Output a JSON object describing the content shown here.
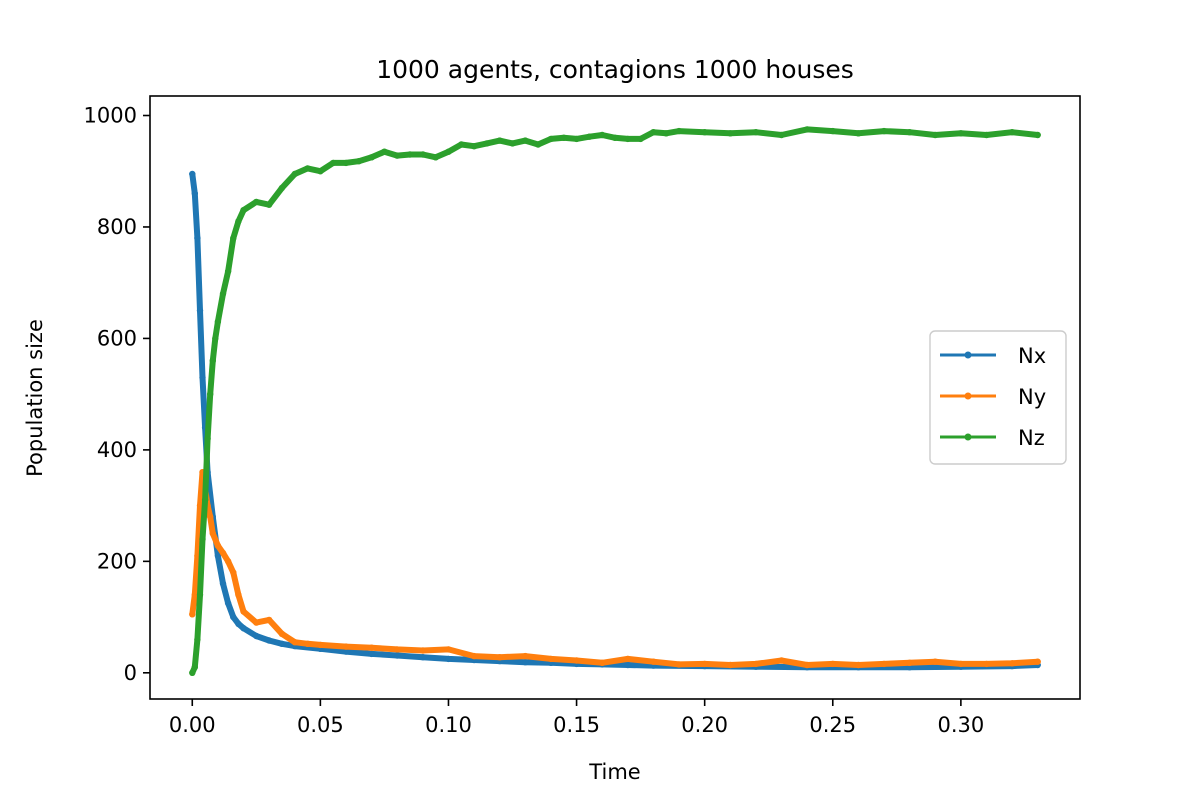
{
  "chart_data": {
    "type": "line",
    "title": "1000 agents, contagions 1000 houses",
    "xlabel": "Time",
    "ylabel": "Population size",
    "xlim": [
      -0.0165,
      0.3465
    ],
    "ylim": [
      -47,
      1035
    ],
    "xticks": [
      "0.00",
      "0.05",
      "0.10",
      "0.15",
      "0.20",
      "0.25",
      "0.30"
    ],
    "yticks": [
      "0",
      "200",
      "400",
      "600",
      "800",
      "1000"
    ],
    "grid": false,
    "legend_position": "center-right",
    "series": [
      {
        "name": "Nx",
        "color": "#1f77b4",
        "points": [
          [
            0.0,
            895
          ],
          [
            0.001,
            860
          ],
          [
            0.002,
            780
          ],
          [
            0.003,
            650
          ],
          [
            0.004,
            530
          ],
          [
            0.005,
            440
          ],
          [
            0.006,
            360
          ],
          [
            0.008,
            280
          ],
          [
            0.01,
            210
          ],
          [
            0.012,
            160
          ],
          [
            0.014,
            125
          ],
          [
            0.016,
            100
          ],
          [
            0.018,
            88
          ],
          [
            0.02,
            80
          ],
          [
            0.025,
            66
          ],
          [
            0.03,
            58
          ],
          [
            0.035,
            52
          ],
          [
            0.04,
            48
          ],
          [
            0.05,
            43
          ],
          [
            0.06,
            38
          ],
          [
            0.07,
            34
          ],
          [
            0.08,
            31
          ],
          [
            0.09,
            28
          ],
          [
            0.1,
            25
          ],
          [
            0.11,
            23
          ],
          [
            0.12,
            21
          ],
          [
            0.13,
            19
          ],
          [
            0.14,
            18
          ],
          [
            0.15,
            16
          ],
          [
            0.16,
            15
          ],
          [
            0.17,
            14
          ],
          [
            0.18,
            13
          ],
          [
            0.2,
            12
          ],
          [
            0.22,
            11
          ],
          [
            0.24,
            10
          ],
          [
            0.26,
            10
          ],
          [
            0.28,
            10
          ],
          [
            0.3,
            11
          ],
          [
            0.32,
            12
          ],
          [
            0.33,
            14
          ]
        ]
      },
      {
        "name": "Ny",
        "color": "#ff7f0e",
        "points": [
          [
            0.0,
            105
          ],
          [
            0.001,
            140
          ],
          [
            0.002,
            210
          ],
          [
            0.003,
            300
          ],
          [
            0.004,
            360
          ],
          [
            0.005,
            330
          ],
          [
            0.006,
            300
          ],
          [
            0.007,
            280
          ],
          [
            0.008,
            250
          ],
          [
            0.01,
            228
          ],
          [
            0.012,
            215
          ],
          [
            0.014,
            200
          ],
          [
            0.016,
            180
          ],
          [
            0.018,
            140
          ],
          [
            0.02,
            110
          ],
          [
            0.025,
            90
          ],
          [
            0.03,
            95
          ],
          [
            0.035,
            70
          ],
          [
            0.04,
            55
          ],
          [
            0.045,
            52
          ],
          [
            0.05,
            50
          ],
          [
            0.06,
            47
          ],
          [
            0.07,
            45
          ],
          [
            0.08,
            42
          ],
          [
            0.09,
            40
          ],
          [
            0.1,
            42
          ],
          [
            0.11,
            30
          ],
          [
            0.12,
            28
          ],
          [
            0.13,
            30
          ],
          [
            0.14,
            25
          ],
          [
            0.15,
            22
          ],
          [
            0.16,
            18
          ],
          [
            0.17,
            25
          ],
          [
            0.18,
            20
          ],
          [
            0.19,
            15
          ],
          [
            0.2,
            16
          ],
          [
            0.21,
            14
          ],
          [
            0.22,
            16
          ],
          [
            0.23,
            22
          ],
          [
            0.24,
            14
          ],
          [
            0.25,
            16
          ],
          [
            0.26,
            14
          ],
          [
            0.27,
            16
          ],
          [
            0.28,
            18
          ],
          [
            0.29,
            20
          ],
          [
            0.3,
            16
          ],
          [
            0.31,
            16
          ],
          [
            0.32,
            17
          ],
          [
            0.33,
            20
          ]
        ]
      },
      {
        "name": "Nz",
        "color": "#2ca02c",
        "points": [
          [
            0.0,
            0
          ],
          [
            0.001,
            10
          ],
          [
            0.002,
            60
          ],
          [
            0.003,
            140
          ],
          [
            0.004,
            240
          ],
          [
            0.005,
            310
          ],
          [
            0.006,
            420
          ],
          [
            0.007,
            500
          ],
          [
            0.008,
            560
          ],
          [
            0.009,
            600
          ],
          [
            0.01,
            630
          ],
          [
            0.012,
            680
          ],
          [
            0.014,
            720
          ],
          [
            0.016,
            780
          ],
          [
            0.018,
            810
          ],
          [
            0.02,
            830
          ],
          [
            0.025,
            845
          ],
          [
            0.03,
            840
          ],
          [
            0.035,
            870
          ],
          [
            0.04,
            895
          ],
          [
            0.045,
            905
          ],
          [
            0.05,
            900
          ],
          [
            0.055,
            915
          ],
          [
            0.06,
            915
          ],
          [
            0.065,
            918
          ],
          [
            0.07,
            925
          ],
          [
            0.075,
            935
          ],
          [
            0.08,
            928
          ],
          [
            0.085,
            930
          ],
          [
            0.09,
            930
          ],
          [
            0.095,
            925
          ],
          [
            0.1,
            935
          ],
          [
            0.105,
            948
          ],
          [
            0.11,
            945
          ],
          [
            0.115,
            950
          ],
          [
            0.12,
            955
          ],
          [
            0.125,
            950
          ],
          [
            0.13,
            955
          ],
          [
            0.135,
            948
          ],
          [
            0.14,
            958
          ],
          [
            0.145,
            960
          ],
          [
            0.15,
            958
          ],
          [
            0.155,
            962
          ],
          [
            0.16,
            965
          ],
          [
            0.165,
            960
          ],
          [
            0.17,
            958
          ],
          [
            0.175,
            958
          ],
          [
            0.18,
            970
          ],
          [
            0.185,
            968
          ],
          [
            0.19,
            972
          ],
          [
            0.2,
            970
          ],
          [
            0.21,
            968
          ],
          [
            0.22,
            970
          ],
          [
            0.23,
            965
          ],
          [
            0.24,
            975
          ],
          [
            0.25,
            972
          ],
          [
            0.26,
            968
          ],
          [
            0.27,
            972
          ],
          [
            0.28,
            970
          ],
          [
            0.29,
            965
          ],
          [
            0.3,
            968
          ],
          [
            0.31,
            965
          ],
          [
            0.32,
            970
          ],
          [
            0.33,
            965
          ]
        ]
      }
    ]
  }
}
